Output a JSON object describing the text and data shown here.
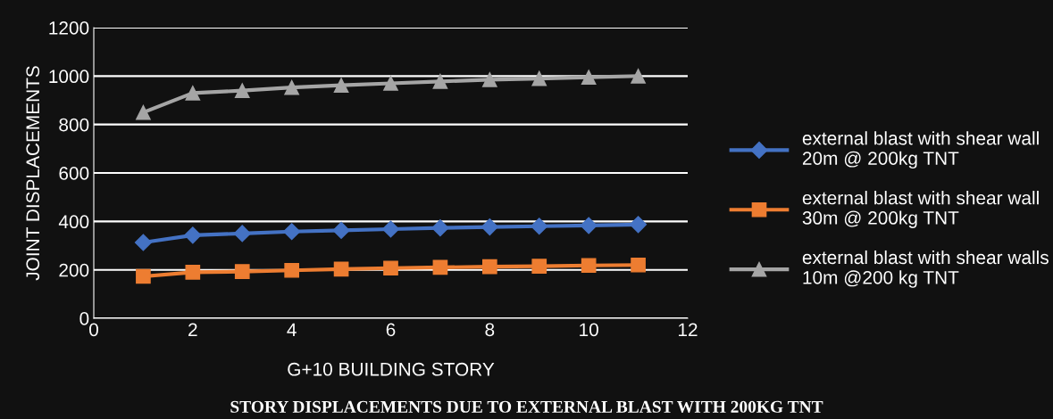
{
  "chart_data": {
    "type": "line",
    "title": "STORY DISPLACEMENTS DUE TO EXTERNAL BLAST WITH 200KG TNT",
    "xlabel": "G+10 BUILDING STORY",
    "ylabel": "JOINT DISPLACEMENTS",
    "x": [
      1,
      2,
      3,
      4,
      5,
      6,
      7,
      8,
      9,
      10,
      11
    ],
    "series": [
      {
        "name": "external blast with shear wall\n20m @ 200kg TNT",
        "color": "#4472c4",
        "marker": "diamond",
        "values": [
          313,
          343,
          350,
          358,
          363,
          368,
          373,
          377,
          380,
          383,
          387
        ]
      },
      {
        "name": "external blast with shear wall\n30m @ 200kg TNT",
        "color": "#ed7d31",
        "marker": "square",
        "values": [
          173,
          190,
          193,
          198,
          203,
          207,
          210,
          213,
          215,
          218,
          220
        ]
      },
      {
        "name": "external blast with shear walls\n10m @200 kg TNT",
        "color": "#a5a5a5",
        "marker": "triangle",
        "values": [
          850,
          930,
          940,
          953,
          962,
          970,
          978,
          985,
          990,
          995,
          1000
        ]
      }
    ],
    "xlim": [
      0,
      12
    ],
    "xticks": [
      0,
      2,
      4,
      6,
      8,
      10,
      12
    ],
    "ylim": [
      0,
      1200
    ],
    "yticks": [
      0,
      200,
      400,
      600,
      800,
      1000,
      1200
    ],
    "grid": "y",
    "legend": "right",
    "line_style": "solid"
  }
}
